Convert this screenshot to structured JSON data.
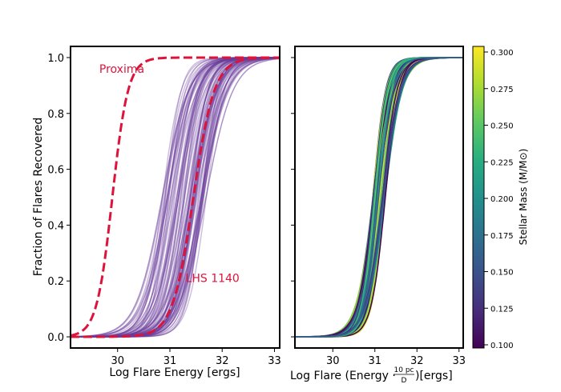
{
  "chart_data": [
    {
      "type": "line",
      "panel": "left",
      "xlabel": "Log Flare Energy [ergs]",
      "ylabel": "Fraction of Flares Recovered",
      "xlim": [
        29.1,
        33.1
      ],
      "ylim": [
        -0.04,
        1.04
      ],
      "xticks": [
        30,
        31,
        32,
        33
      ],
      "yticks": [
        0.0,
        0.2,
        0.4,
        0.6,
        0.8,
        1.0
      ],
      "xtick_labels": [
        "30",
        "31",
        "32",
        "33"
      ],
      "ytick_labels": [
        "0.0",
        "0.2",
        "0.4",
        "0.6",
        "0.8",
        "1.0"
      ],
      "curve_family": {
        "description": "Recovery curves for a sample of stars",
        "count": 90,
        "midpoint_range": [
          30.85,
          31.7
        ],
        "width_range": [
          0.15,
          0.26
        ],
        "color": "#6a3d9a"
      },
      "series": [
        {
          "name": "Proxima",
          "midpoint": 29.9,
          "width": 0.15,
          "color": "#dc143c",
          "style": "dashed"
        },
        {
          "name": "LHS 1140",
          "midpoint": 31.45,
          "width": 0.2,
          "color": "#dc143c",
          "style": "dashed"
        }
      ],
      "annotations": [
        {
          "text": "Proxima",
          "x": 29.65,
          "y": 0.96
        },
        {
          "text": "LHS 1140",
          "x": 31.3,
          "y": 0.21
        }
      ]
    },
    {
      "type": "line",
      "panel": "right",
      "xlabel_prefix": "Log Flare (Energy · ",
      "xlabel_frac_num": "10 pc",
      "xlabel_frac_den": "D",
      "xlabel_suffix": ")[ergs]",
      "xlim": [
        29.1,
        33.1
      ],
      "ylim": [
        -0.04,
        1.04
      ],
      "xticks": [
        30,
        31,
        32,
        33
      ],
      "yticks": [
        0.0,
        0.2,
        0.4,
        0.6,
        0.8,
        1.0
      ],
      "xtick_labels": [
        "30",
        "31",
        "32",
        "33"
      ],
      "curve_family": {
        "count": 90,
        "midpoint_range": [
          30.95,
          31.25
        ],
        "width_range": [
          0.15,
          0.22
        ],
        "colored_by": "stellar mass"
      },
      "colorbar": {
        "label": "Stellar Mass (M/M⊙)",
        "colormap": "viridis",
        "range": [
          0.1,
          0.3
        ],
        "ticks": [
          "0.100",
          "0.125",
          "0.150",
          "0.175",
          "0.200",
          "0.225",
          "0.250",
          "0.275",
          "0.300"
        ]
      }
    }
  ]
}
